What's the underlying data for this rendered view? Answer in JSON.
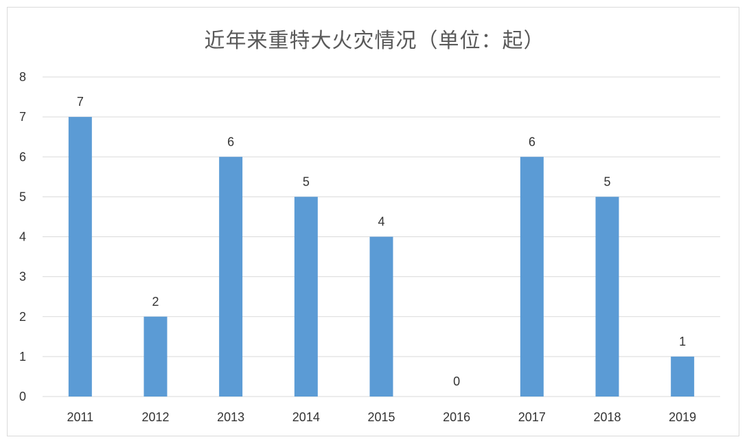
{
  "colors": {
    "bar": "#5b9bd5",
    "grid": "#d9d9d9",
    "text": "#333333",
    "title": "#595959"
  },
  "chart_data": {
    "type": "bar",
    "title": "近年来重特大火灾情况（单位：起）",
    "xlabel": "",
    "ylabel": "",
    "categories": [
      "2011",
      "2012",
      "2013",
      "2014",
      "2015",
      "2016",
      "2017",
      "2018",
      "2019"
    ],
    "values": [
      7,
      2,
      6,
      5,
      4,
      0,
      6,
      5,
      1
    ],
    "ylim": [
      0,
      8
    ],
    "yticks": [
      "0",
      "1",
      "2",
      "3",
      "4",
      "5",
      "6",
      "7",
      "8"
    ],
    "grid": true,
    "legend": "none",
    "data_labels": true
  }
}
